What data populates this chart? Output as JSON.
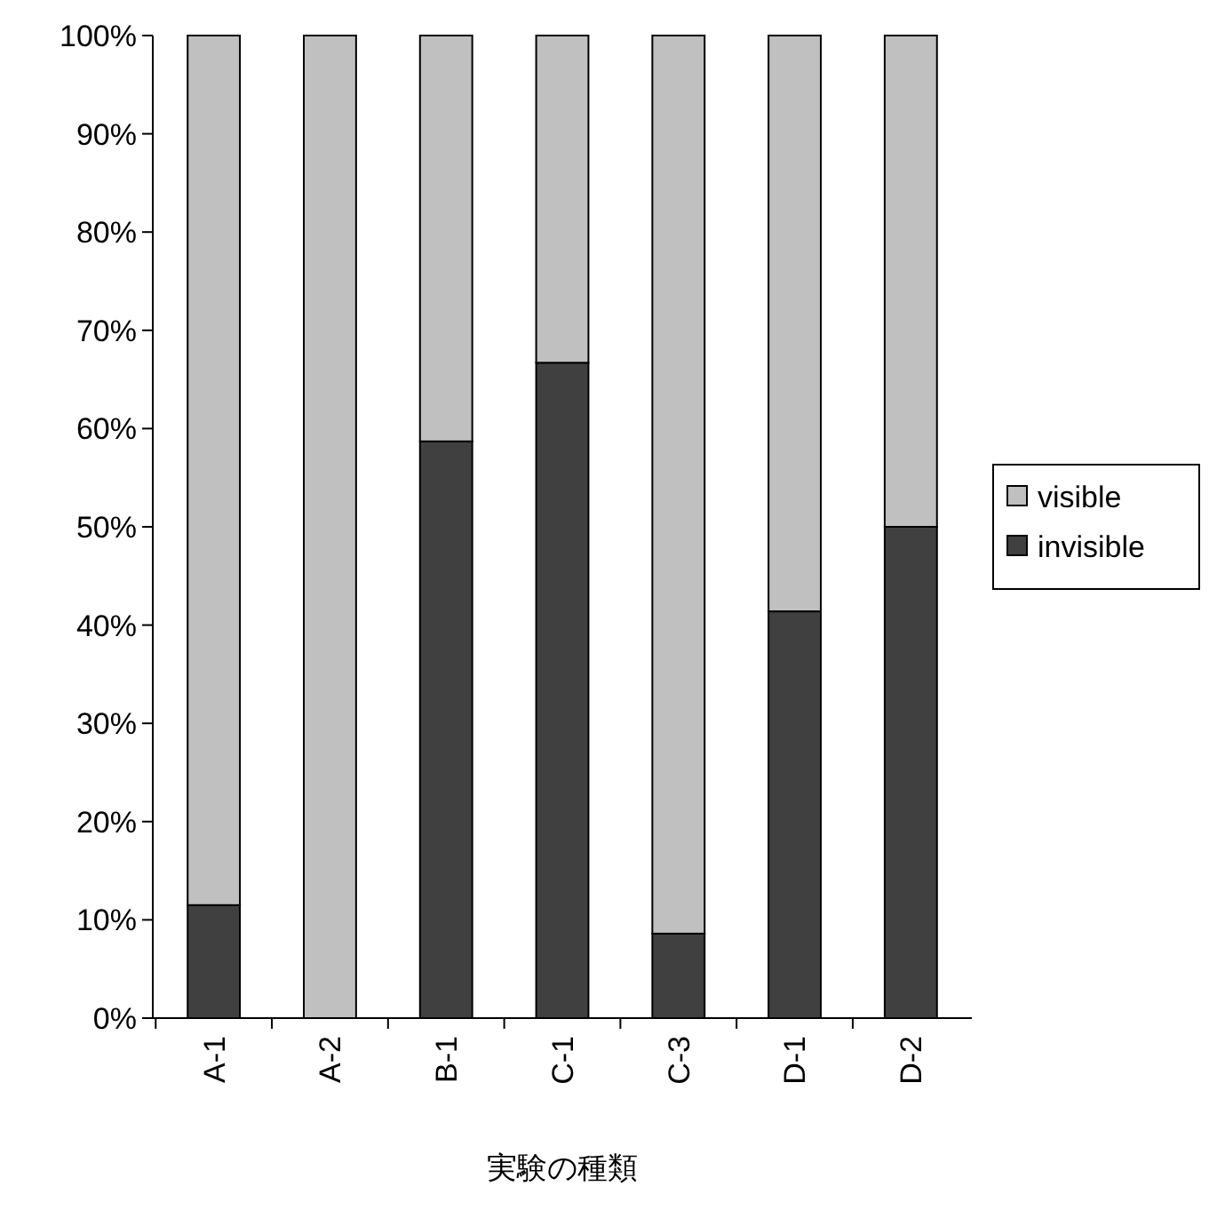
{
  "chart_data": {
    "type": "bar",
    "stacked": true,
    "xlabel": "実験の種類",
    "categories": [
      "A-1",
      "A-2",
      "B-1",
      "C-1",
      "C-3",
      "D-1",
      "D-2"
    ],
    "series": [
      {
        "name": "invisible",
        "color": "#404040",
        "values": [
          11.5,
          0,
          58.7,
          66.7,
          8.6,
          41.4,
          50
        ]
      },
      {
        "name": "visible",
        "color": "#c0c0c0",
        "values": [
          88.5,
          100,
          41.3,
          33.3,
          91.4,
          58.6,
          50
        ]
      }
    ],
    "ylim": [
      0,
      100
    ],
    "yticks": [
      {
        "value": 0,
        "label": "0%"
      },
      {
        "value": 10,
        "label": "10%"
      },
      {
        "value": 20,
        "label": "20%"
      },
      {
        "value": 30,
        "label": "30%"
      },
      {
        "value": 40,
        "label": "40%"
      },
      {
        "value": 50,
        "label": "50%"
      },
      {
        "value": 60,
        "label": "60%"
      },
      {
        "value": 70,
        "label": "70%"
      },
      {
        "value": 80,
        "label": "80%"
      },
      {
        "value": 90,
        "label": "90%"
      },
      {
        "value": 100,
        "label": "100%"
      }
    ],
    "grid": false,
    "legend": "right"
  }
}
